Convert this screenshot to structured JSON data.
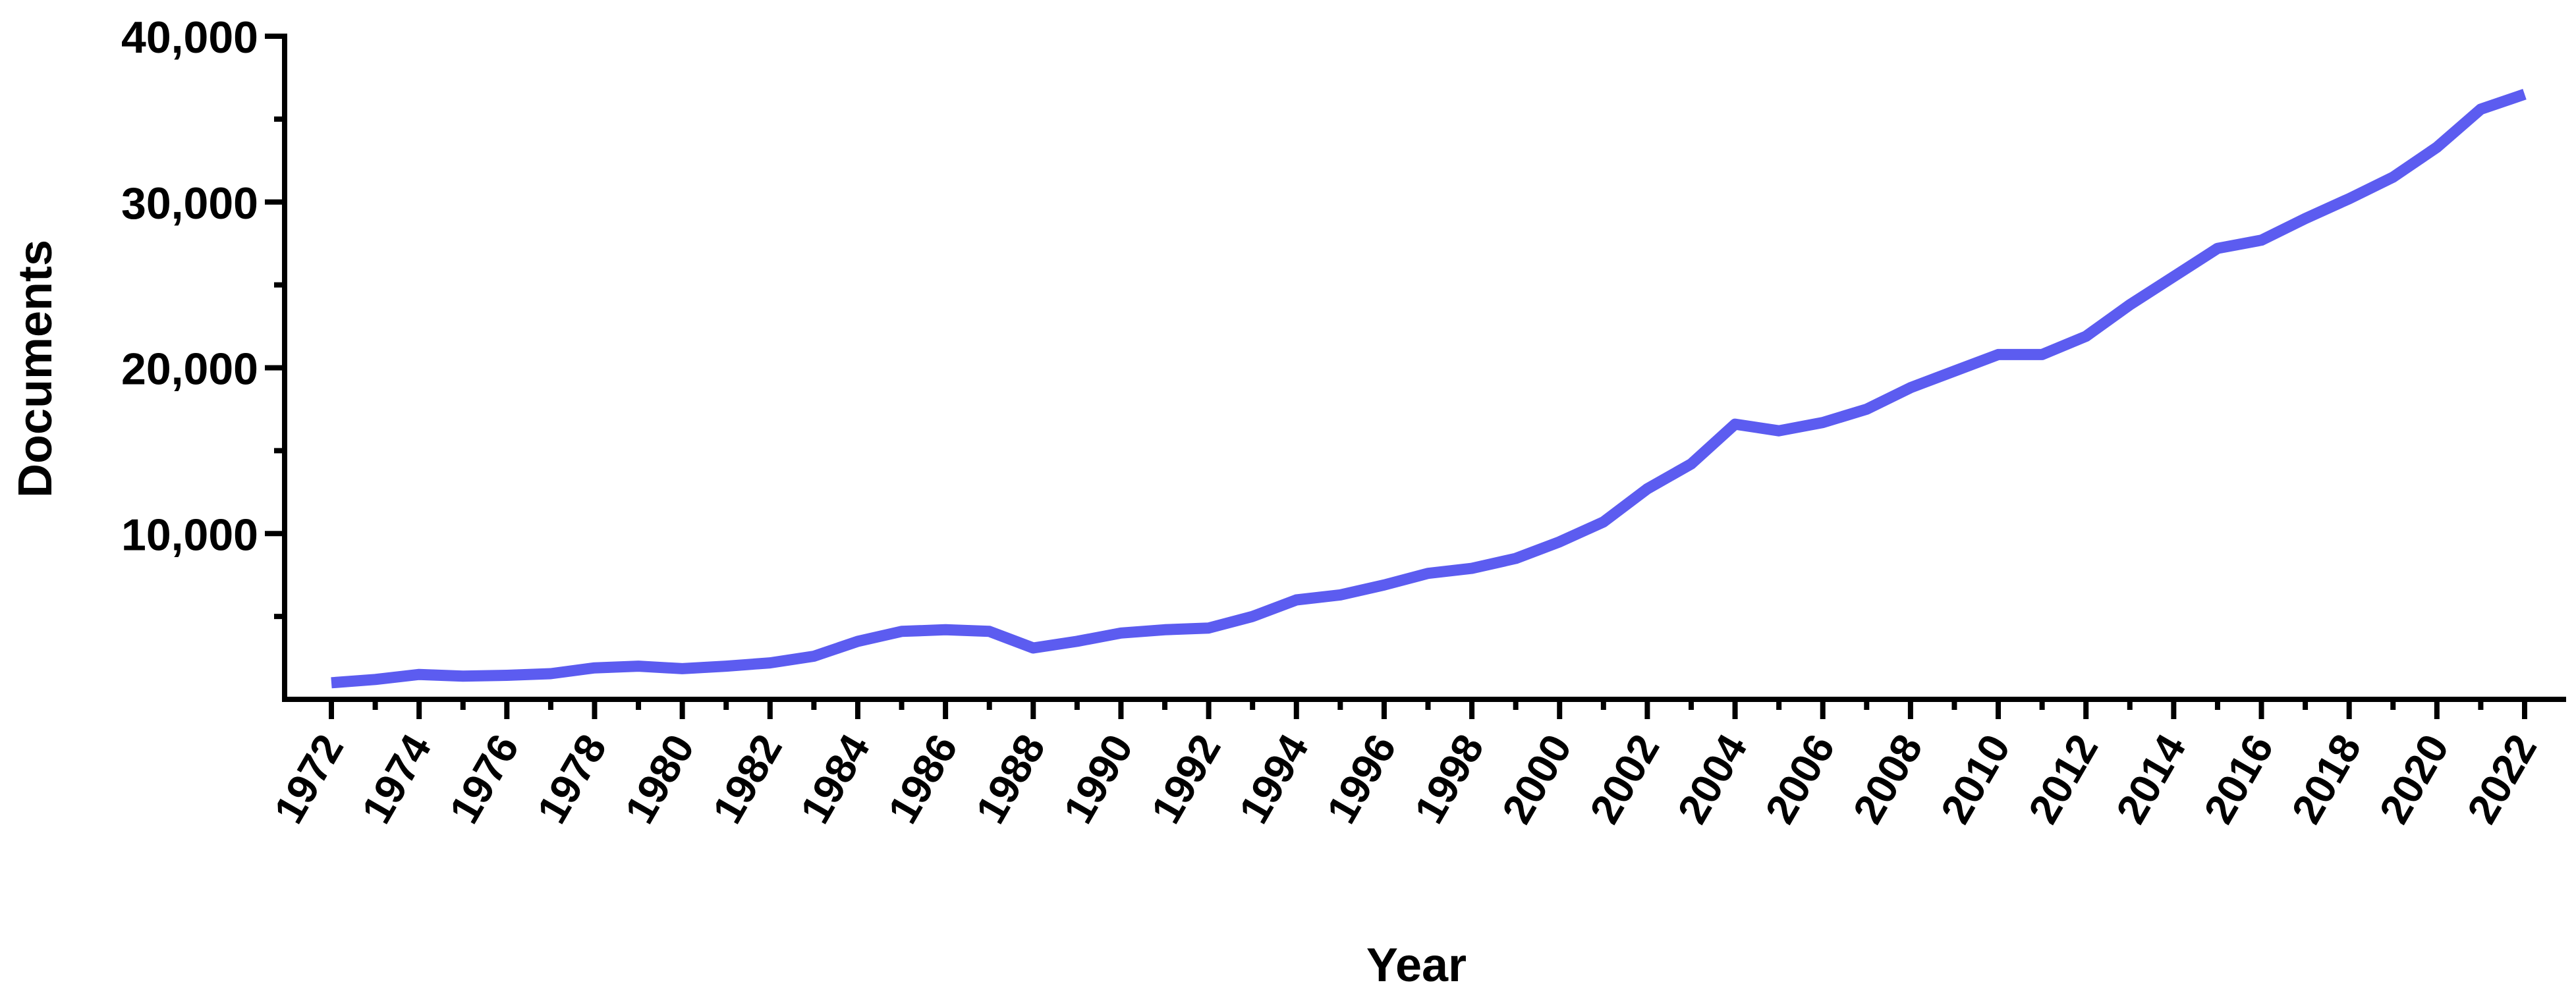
{
  "chart_data": {
    "type": "line",
    "title": "",
    "xlabel": "Year",
    "ylabel": "Documents",
    "xlim": [
      1972,
      2022
    ],
    "ylim": [
      0,
      40000
    ],
    "x_ticks": [
      1972,
      1974,
      1976,
      1978,
      1980,
      1982,
      1984,
      1986,
      1988,
      1990,
      1992,
      1994,
      1996,
      1998,
      2000,
      2002,
      2004,
      2006,
      2008,
      2010,
      2012,
      2014,
      2016,
      2018,
      2020,
      2022
    ],
    "x_tick_labels": [
      "1972",
      "1974",
      "1976",
      "1978",
      "1980",
      "1982",
      "1984",
      "1986",
      "1988",
      "1990",
      "1992",
      "1994",
      "1996",
      "1998",
      "2000",
      "2002",
      "2004",
      "2006",
      "2008",
      "2010",
      "2012",
      "2014",
      "2016",
      "2018",
      "2020",
      "2022"
    ],
    "y_ticks": [
      10000,
      20000,
      30000,
      40000
    ],
    "y_tick_labels": [
      "10,000",
      "20,000",
      "30,000",
      "40,000"
    ],
    "y_minor_ticks": [
      5000,
      15000,
      25000,
      35000
    ],
    "grid": false,
    "legend": "none",
    "line_color": "#5c5cf0",
    "series": [
      {
        "x": [
          1972,
          1973,
          1974,
          1975,
          1976,
          1977,
          1978,
          1979,
          1980,
          1981,
          1982,
          1983,
          1984,
          1985,
          1986,
          1987,
          1988,
          1989,
          1990,
          1991,
          1992,
          1993,
          1994,
          1995,
          1996,
          1997,
          1998,
          1999,
          2000,
          2001,
          2002,
          2003,
          2004,
          2005,
          2006,
          2007,
          2008,
          2009,
          2010,
          2011,
          2012,
          2013,
          2014,
          2015,
          2016,
          2017,
          2018,
          2019,
          2020,
          2021,
          2022
        ],
        "values": [
          1000,
          1200,
          1500,
          1400,
          1450,
          1550,
          1900,
          2000,
          1850,
          2000,
          2200,
          2600,
          3500,
          4100,
          4200,
          4100,
          3100,
          3500,
          4000,
          4200,
          4300,
          5000,
          6000,
          6300,
          6900,
          7600,
          7900,
          8500,
          9500,
          10700,
          12700,
          14200,
          16600,
          16200,
          16700,
          17500,
          18800,
          19800,
          20800,
          20800,
          21900,
          23800,
          25500,
          27200,
          27700,
          29000,
          30200,
          31500,
          33300,
          35600,
          36500
        ]
      }
    ]
  }
}
